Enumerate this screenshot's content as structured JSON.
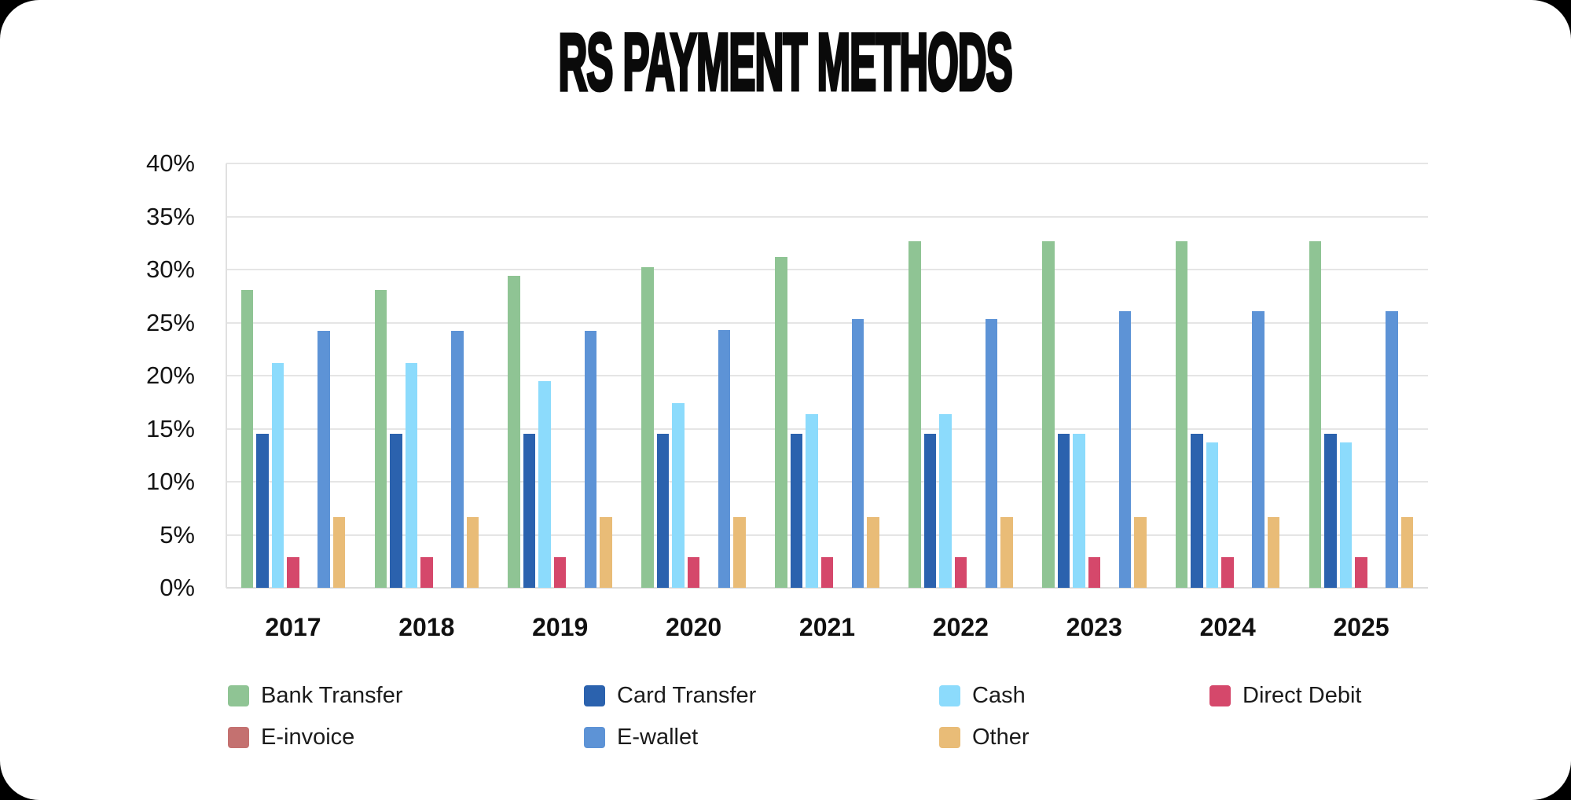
{
  "title": "RS PAYMENT METHODS",
  "chart_data": {
    "type": "bar",
    "title": "RS PAYMENT METHODS",
    "categories": [
      "2017",
      "2018",
      "2019",
      "2020",
      "2021",
      "2022",
      "2023",
      "2024",
      "2025"
    ],
    "series": [
      {
        "name": "Bank Transfer",
        "color": "#8FC494",
        "values": [
          28.1,
          28.1,
          29.4,
          30.2,
          31.2,
          32.7,
          32.7,
          32.7,
          32.7
        ]
      },
      {
        "name": "Card Transfer",
        "color": "#2B62AE",
        "values": [
          14.5,
          14.5,
          14.5,
          14.5,
          14.5,
          14.5,
          14.5,
          14.5,
          14.5
        ]
      },
      {
        "name": "Cash",
        "color": "#8CDBFC",
        "values": [
          21.2,
          21.2,
          19.5,
          17.4,
          16.4,
          16.4,
          14.5,
          13.7,
          13.7
        ]
      },
      {
        "name": "Direct Debit",
        "color": "#D5486B",
        "values": [
          2.9,
          2.9,
          2.9,
          2.9,
          2.9,
          2.9,
          2.9,
          2.9,
          2.9
        ]
      },
      {
        "name": "E-invoice",
        "color": "#C47170",
        "values": [
          0,
          0,
          0,
          0,
          0,
          0,
          0,
          0,
          0
        ]
      },
      {
        "name": "E-wallet",
        "color": "#5D93D6",
        "values": [
          24.2,
          24.2,
          24.2,
          24.3,
          25.3,
          25.3,
          26.1,
          26.1,
          26.1
        ]
      },
      {
        "name": "Other",
        "color": "#E9BC77",
        "values": [
          6.7,
          6.7,
          6.7,
          6.7,
          6.7,
          6.7,
          6.7,
          6.7,
          6.7
        ]
      }
    ],
    "ylim": [
      0,
      40
    ],
    "y_ticks": [
      40,
      35,
      30,
      25,
      20,
      15,
      10,
      5,
      0
    ],
    "y_tick_suffix": "%",
    "grid": true,
    "legend_position": "bottom",
    "legend_rows": [
      4,
      3
    ]
  },
  "style": {
    "background": "#000000",
    "card_color": "#FFFFFF",
    "gridline_color": "#E5E5E5",
    "axis_color": "#DCDCDC",
    "text_color": "#141414"
  }
}
